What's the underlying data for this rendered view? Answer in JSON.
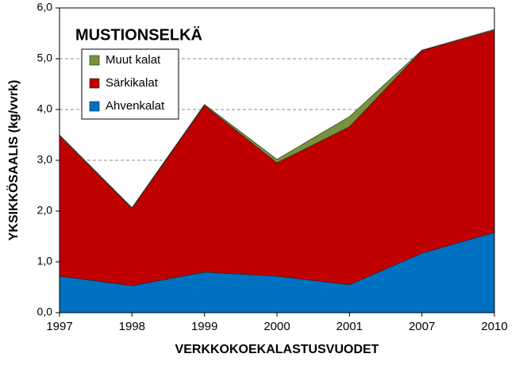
{
  "chart_data": {
    "type": "stacked-area",
    "title": "MUSTIONSELKÄ",
    "x_label": "VERKKOKOEKALASTUSVUODET",
    "y_label": "YKSIKKÖSAALIS (kg/vvrk)",
    "categories": [
      "1997",
      "1998",
      "1999",
      "2000",
      "2001",
      "2007",
      "2010"
    ],
    "series": [
      {
        "name": "Ahvenkalat",
        "color": "#0070c0",
        "values": [
          0.72,
          0.53,
          0.8,
          0.72,
          0.55,
          1.17,
          1.58
        ]
      },
      {
        "name": "Särkikalat",
        "color": "#c00000",
        "values": [
          2.76,
          1.52,
          3.28,
          2.23,
          3.11,
          3.99,
          3.98
        ]
      },
      {
        "name": "Muut kalat",
        "color": "#77933c",
        "values": [
          0.02,
          0.02,
          0.02,
          0.07,
          0.2,
          0.01,
          0.02
        ]
      }
    ],
    "ylim": [
      0,
      6
    ],
    "yticks": [
      {
        "value": 0,
        "label": "0,0"
      },
      {
        "value": 1,
        "label": "1,0"
      },
      {
        "value": 2,
        "label": "2,0"
      },
      {
        "value": 3,
        "label": "3,0"
      },
      {
        "value": 4,
        "label": "4,0"
      },
      {
        "value": 5,
        "label": "5,0"
      },
      {
        "value": 6,
        "label": "6,0"
      }
    ],
    "grid": true
  }
}
